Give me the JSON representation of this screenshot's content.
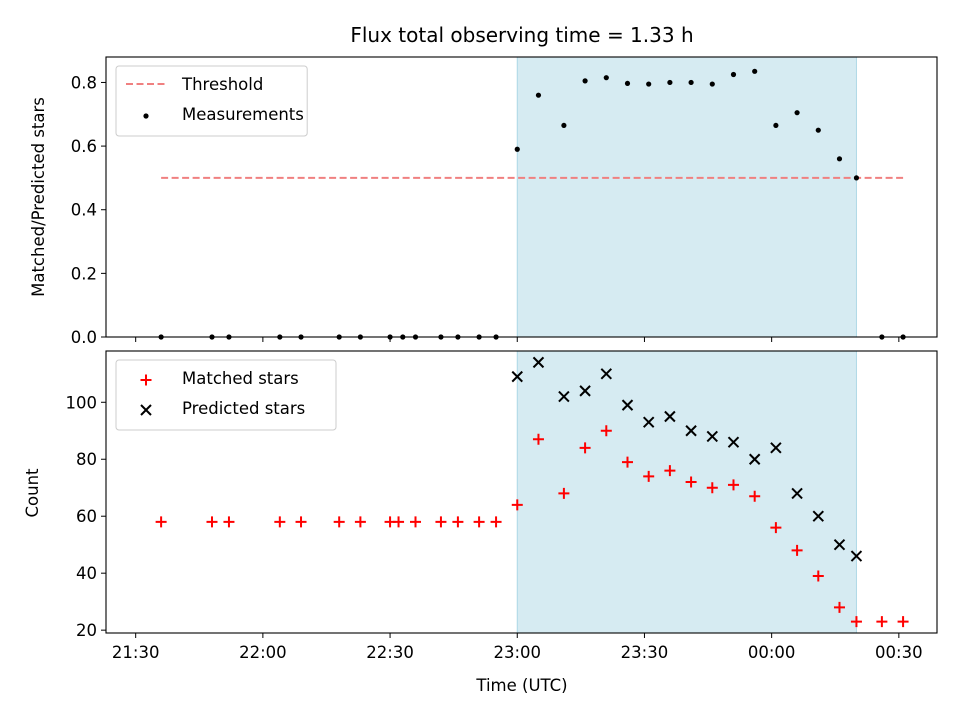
{
  "chart_data": {
    "type": "scatter",
    "title": "Flux total observing time = 1.33 h",
    "xlabel": "Time (UTC)",
    "x_tick_labels": [
      "21:30",
      "22:00",
      "22:30",
      "23:00",
      "23:30",
      "00:00",
      "00:30"
    ],
    "xlim": [
      "21:23",
      "00:39"
    ],
    "shaded_interval": {
      "start": "23:00",
      "end": "00:20",
      "color": "#add8e6"
    },
    "panels": [
      {
        "ylabel": "Matched/Predicted stars",
        "ylim": [
          0,
          0.88
        ],
        "y_ticks": [
          0.0,
          0.2,
          0.4,
          0.6,
          0.8
        ],
        "y_tick_labels": [
          "0.0",
          "0.2",
          "0.4",
          "0.6",
          "0.8"
        ],
        "legend_position": "upper-left",
        "threshold": {
          "name": "Threshold",
          "value": 0.5,
          "x_start": "21:36",
          "x_end": "00:31",
          "color": "#f08080"
        },
        "series": [
          {
            "name": "Measurements",
            "marker": "dot",
            "color": "#000000",
            "points": [
              [
                "21:36",
                0.0
              ],
              [
                "21:48",
                0.0
              ],
              [
                "21:52",
                0.0
              ],
              [
                "22:04",
                0.0
              ],
              [
                "22:09",
                0.0
              ],
              [
                "22:18",
                0.0
              ],
              [
                "22:23",
                0.0
              ],
              [
                "22:30",
                0.0
              ],
              [
                "22:33",
                0.0
              ],
              [
                "22:36",
                0.0
              ],
              [
                "22:42",
                0.0
              ],
              [
                "22:46",
                0.0
              ],
              [
                "22:51",
                0.0
              ],
              [
                "22:55",
                0.0
              ],
              [
                "23:00",
                0.59
              ],
              [
                "23:05",
                0.76
              ],
              [
                "23:11",
                0.665
              ],
              [
                "23:16",
                0.805
              ],
              [
                "23:21",
                0.815
              ],
              [
                "23:26",
                0.797
              ],
              [
                "23:31",
                0.795
              ],
              [
                "23:36",
                0.8
              ],
              [
                "23:41",
                0.8
              ],
              [
                "23:46",
                0.795
              ],
              [
                "23:51",
                0.825
              ],
              [
                "23:56",
                0.835
              ],
              [
                "00:01",
                0.665
              ],
              [
                "00:06",
                0.705
              ],
              [
                "00:11",
                0.65
              ],
              [
                "00:16",
                0.56
              ],
              [
                "00:20",
                0.5
              ],
              [
                "00:26",
                0.0
              ],
              [
                "00:31",
                0.0
              ]
            ]
          }
        ]
      },
      {
        "ylabel": "Count",
        "ylim": [
          19,
          118
        ],
        "y_ticks": [
          20,
          40,
          60,
          80,
          100
        ],
        "y_tick_labels": [
          "20",
          "40",
          "60",
          "80",
          "100"
        ],
        "legend_position": "upper-left",
        "series": [
          {
            "name": "Matched stars",
            "marker": "plus",
            "color": "#ff0000",
            "points": [
              [
                "21:36",
                58
              ],
              [
                "21:48",
                58
              ],
              [
                "21:52",
                58
              ],
              [
                "22:04",
                58
              ],
              [
                "22:09",
                58
              ],
              [
                "22:18",
                58
              ],
              [
                "22:23",
                58
              ],
              [
                "22:30",
                58
              ],
              [
                "22:32",
                58
              ],
              [
                "22:36",
                58
              ],
              [
                "22:42",
                58
              ],
              [
                "22:46",
                58
              ],
              [
                "22:51",
                58
              ],
              [
                "22:55",
                58
              ],
              [
                "23:00",
                64
              ],
              [
                "23:05",
                87
              ],
              [
                "23:11",
                68
              ],
              [
                "23:16",
                84
              ],
              [
                "23:21",
                90
              ],
              [
                "23:26",
                79
              ],
              [
                "23:31",
                74
              ],
              [
                "23:36",
                76
              ],
              [
                "23:41",
                72
              ],
              [
                "23:46",
                70
              ],
              [
                "23:51",
                71
              ],
              [
                "23:56",
                67
              ],
              [
                "00:01",
                56
              ],
              [
                "00:06",
                48
              ],
              [
                "00:11",
                39
              ],
              [
                "00:16",
                28
              ],
              [
                "00:20",
                23
              ],
              [
                "00:26",
                23
              ],
              [
                "00:31",
                23
              ]
            ]
          },
          {
            "name": "Predicted stars",
            "marker": "x",
            "color": "#000000",
            "points": [
              [
                "23:00",
                109
              ],
              [
                "23:05",
                114
              ],
              [
                "23:11",
                102
              ],
              [
                "23:16",
                104
              ],
              [
                "23:21",
                110
              ],
              [
                "23:26",
                99
              ],
              [
                "23:31",
                93
              ],
              [
                "23:36",
                95
              ],
              [
                "23:41",
                90
              ],
              [
                "23:46",
                88
              ],
              [
                "23:51",
                86
              ],
              [
                "23:56",
                80
              ],
              [
                "00:01",
                84
              ],
              [
                "00:06",
                68
              ],
              [
                "00:11",
                60
              ],
              [
                "00:16",
                50
              ],
              [
                "00:20",
                46
              ]
            ]
          }
        ]
      }
    ]
  }
}
